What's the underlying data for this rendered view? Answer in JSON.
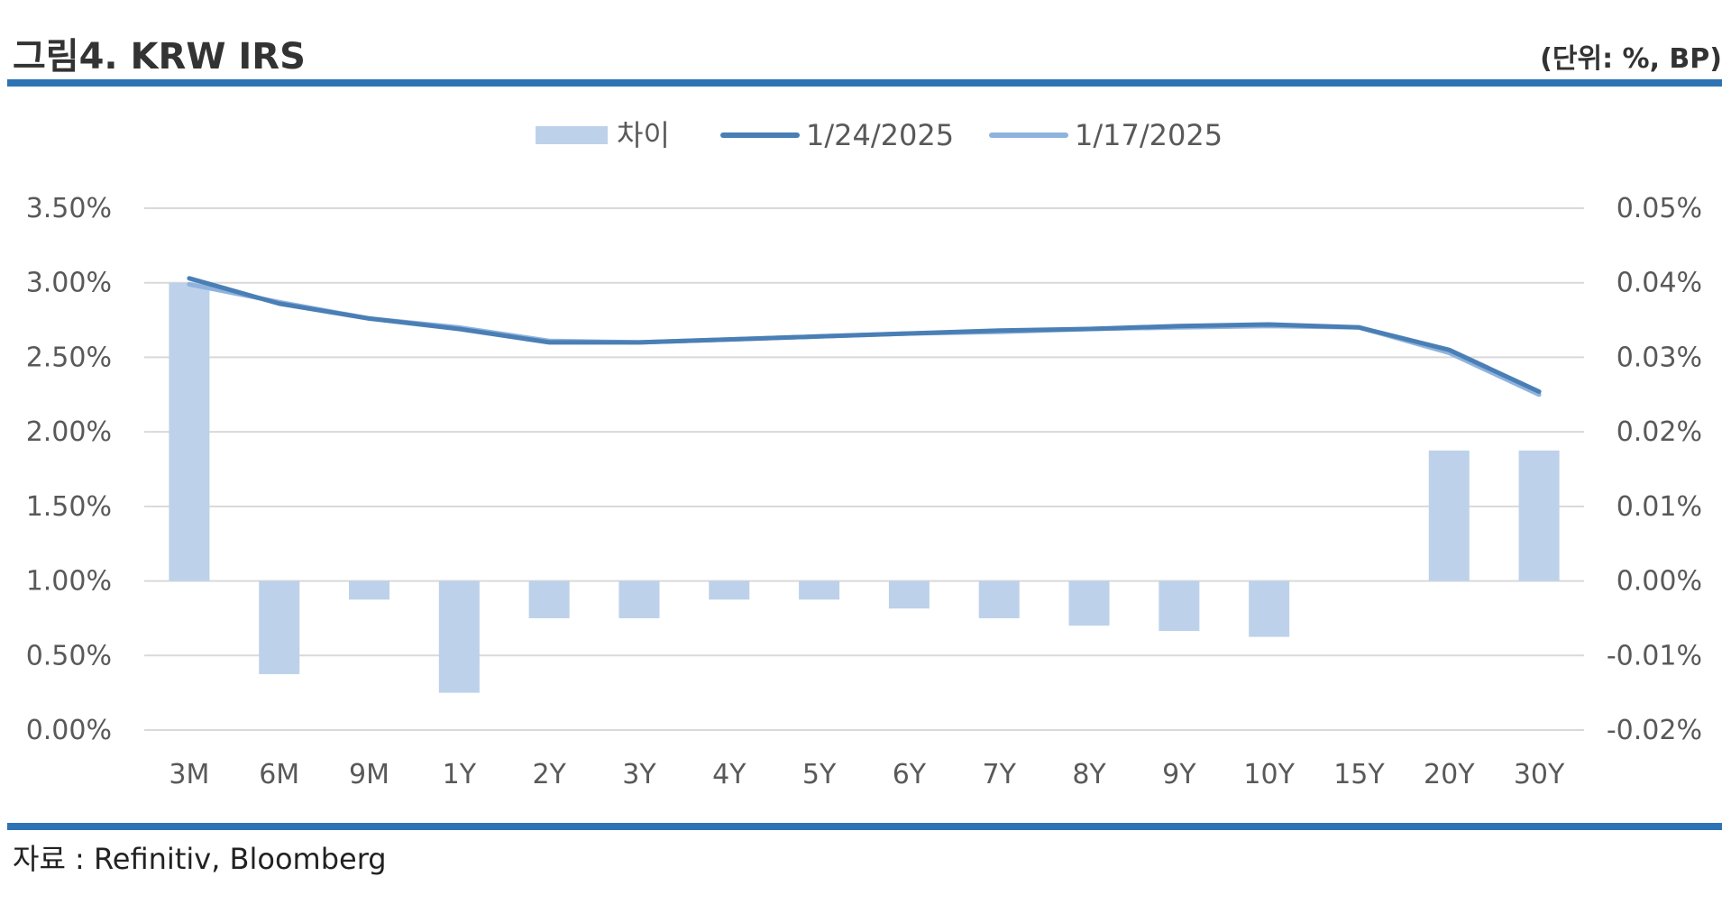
{
  "header": {
    "title": "그림4. KRW IRS",
    "unit": "(단위: %, BP)"
  },
  "footer": {
    "source": "자료 : Refinitiv, Bloomberg"
  },
  "colors": {
    "rule": "#2e74b5",
    "bar": "#bdd1ea",
    "line_latest": "#4a7fb5",
    "line_prev": "#8fb3de",
    "grid": "#d9d9d9"
  },
  "chart_data": {
    "type": "bar+line",
    "categories": [
      "3M",
      "6M",
      "9M",
      "1Y",
      "2Y",
      "3Y",
      "4Y",
      "5Y",
      "6Y",
      "7Y",
      "8Y",
      "9Y",
      "10Y",
      "15Y",
      "20Y",
      "30Y"
    ],
    "series": [
      {
        "name": "차이",
        "type": "bar",
        "axis": "right",
        "values": [
          0.04,
          -0.0125,
          -0.0025,
          -0.015,
          -0.005,
          -0.005,
          -0.0025,
          -0.0025,
          -0.0037,
          -0.005,
          -0.006,
          -0.0067,
          -0.0075,
          0.0,
          0.0175,
          0.0175
        ]
      },
      {
        "name": "1/24/2025",
        "type": "line",
        "axis": "left",
        "values": [
          3.03,
          2.86,
          2.76,
          2.69,
          2.6,
          2.6,
          2.62,
          2.64,
          2.66,
          2.68,
          2.69,
          2.71,
          2.72,
          2.7,
          2.55,
          2.27
        ]
      },
      {
        "name": "1/17/2025",
        "type": "line",
        "axis": "left",
        "values": [
          2.99,
          2.87,
          2.76,
          2.7,
          2.61,
          2.6,
          2.62,
          2.64,
          2.66,
          2.67,
          2.69,
          2.7,
          2.71,
          2.7,
          2.53,
          2.25
        ]
      }
    ],
    "y_left": {
      "min": 0,
      "max": 3.5,
      "step": 0.5,
      "ticks": [
        "0.00%",
        "0.50%",
        "1.00%",
        "1.50%",
        "2.00%",
        "2.50%",
        "3.00%",
        "3.50%"
      ]
    },
    "y_right": {
      "min": -0.02,
      "max": 0.05,
      "step": 0.01,
      "ticks": [
        "-0.02%",
        "-0.01%",
        "0.00%",
        "0.01%",
        "0.02%",
        "0.03%",
        "0.04%",
        "0.05%"
      ]
    },
    "legend": {
      "position": "top-center",
      "entries": [
        "차이",
        "1/24/2025",
        "1/17/2025"
      ]
    },
    "grid": true
  }
}
